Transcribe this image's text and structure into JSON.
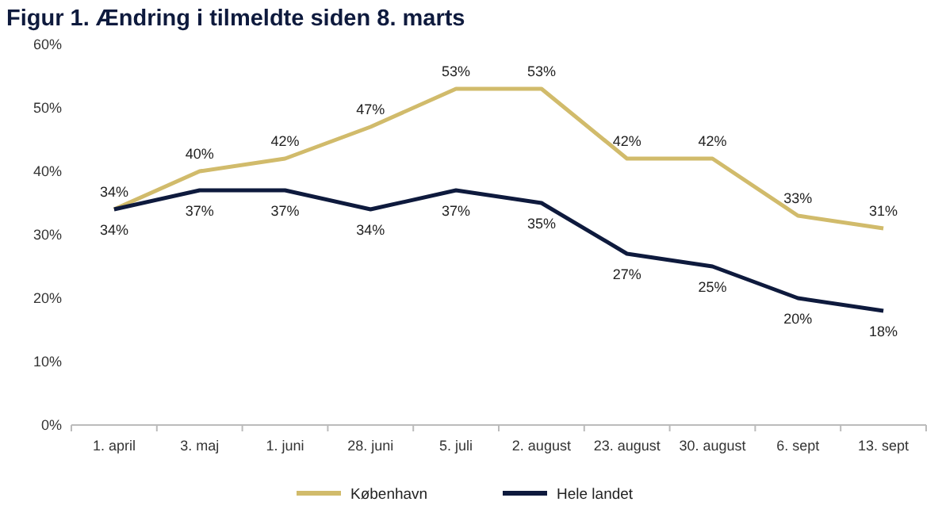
{
  "chart_data": {
    "type": "line",
    "title": "Figur 1. Ændring i tilmeldte siden 8. marts",
    "categories": [
      "1. april",
      "3. maj",
      "1. juni",
      "28. juni",
      "5. juli",
      "2. august",
      "23. august",
      "30. august",
      "6. sept",
      "13. sept"
    ],
    "series": [
      {
        "name": "København",
        "color": "#d1bb6b",
        "values": [
          34,
          40,
          42,
          47,
          53,
          53,
          42,
          42,
          33,
          31
        ],
        "value_labels": [
          "34%",
          "40%",
          "42%",
          "47%",
          "53%",
          "53%",
          "42%",
          "42%",
          "33%",
          "31%"
        ]
      },
      {
        "name": "Hele landet",
        "color": "#0e1a3d",
        "values": [
          34,
          37,
          37,
          34,
          37,
          35,
          27,
          25,
          20,
          18
        ],
        "value_labels": [
          "34%",
          "37%",
          "37%",
          "34%",
          "37%",
          "35%",
          "27%",
          "25%",
          "20%",
          "18%"
        ]
      }
    ],
    "ylim": [
      0,
      60
    ],
    "yticks": [
      {
        "value": 0,
        "label": "0%"
      },
      {
        "value": 10,
        "label": "10%"
      },
      {
        "value": 20,
        "label": "20%"
      },
      {
        "value": 30,
        "label": "30%"
      },
      {
        "value": 40,
        "label": "40%"
      },
      {
        "value": 50,
        "label": "50%"
      },
      {
        "value": 60,
        "label": "60%"
      }
    ],
    "legend": "bottom",
    "marker": "none",
    "line_style": "solid"
  }
}
